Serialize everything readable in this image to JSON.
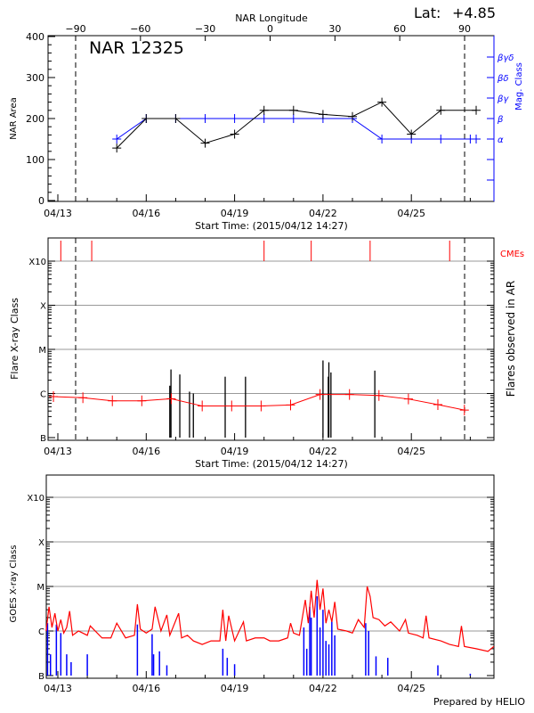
{
  "header": {
    "lat_label": "Lat:",
    "lat_value": "+4.85"
  },
  "chart_data": [
    {
      "type": "line",
      "title": "NAR 12325",
      "xlabel": "Start Time: (2015/04/12 14:27)",
      "ylabel": "NAR Area",
      "y2label": "Mag. Class",
      "top_axis_label": "NAR Longitude",
      "top_ticks": [
        -90,
        -60,
        -30,
        0,
        30,
        60,
        90
      ],
      "x_ticks": [
        "04/13",
        "04/16",
        "04/19",
        "04/22",
        "04/25"
      ],
      "x_tick_days": [
        13,
        16,
        19,
        22,
        25
      ],
      "ylim": [
        0,
        400
      ],
      "y_ticks": [
        0,
        100,
        200,
        300,
        400
      ],
      "mag_class_ticks": [
        "α",
        "β",
        "βγ",
        "βδ",
        "βγδ"
      ],
      "limb_longitudes": [
        -90,
        90
      ],
      "series": [
        {
          "name": "NAR Area",
          "color": "#000000",
          "x": [
            15,
            16,
            17,
            18,
            19,
            20,
            21,
            22,
            23,
            24,
            25,
            26,
            27.2
          ],
          "values": [
            128,
            200,
            200,
            140,
            162,
            220,
            220,
            210,
            205,
            240,
            162,
            220,
            220
          ]
        },
        {
          "name": "Mag. Class",
          "color": "#0000ff",
          "x": [
            15,
            16,
            17,
            18,
            19,
            20,
            21,
            22,
            23,
            24,
            25,
            26,
            27,
            27.2
          ],
          "values": [
            "α",
            "β",
            "β",
            "β",
            "β",
            "β",
            "β",
            "β",
            "β",
            "α",
            "α",
            "α",
            "α",
            "α"
          ]
        }
      ]
    },
    {
      "type": "line",
      "xlabel": "Start Time: (2015/04/12 14:27)",
      "ylabel": "Flare X-ray Class",
      "y2label": "Flares observed in AR",
      "y_ticks": [
        "B",
        "C",
        "M",
        "X",
        "X10"
      ],
      "cme_label": "CMEs",
      "cme_days": [
        13.1,
        14.15,
        20.0,
        21.6,
        23.6,
        26.3
      ],
      "x_ticks": [
        "04/13",
        "04/16",
        "04/19",
        "04/22",
        "04/25"
      ],
      "background": {
        "color": "#ff0000",
        "x": [
          12.85,
          13.85,
          14.85,
          15.85,
          16.85,
          17.9,
          18.9,
          19.9,
          20.9,
          21.9,
          22.9,
          23.9,
          24.9,
          25.9,
          26.8
        ],
        "flux": [
          8.5e-07,
          8e-07,
          6.8e-07,
          6.8e-07,
          7.6e-07,
          5.2e-07,
          5.2e-07,
          5.2e-07,
          5.5e-07,
          9.5e-07,
          9.5e-07,
          9e-07,
          7.5e-07,
          5.6e-07,
          4.2e-07
        ]
      },
      "flares": {
        "color": "#000000",
        "x": [
          16.8,
          16.84,
          17.14,
          17.47,
          17.6,
          18.68,
          19.37,
          22.0,
          22.18,
          22.2,
          22.27,
          23.76
        ],
        "flux": [
          1.5e-06,
          3.5e-06,
          2.7e-06,
          1.1e-06,
          1e-06,
          2.4e-06,
          2.4e-06,
          5.6e-06,
          2.4e-06,
          5.1e-06,
          3e-06,
          3.3e-06
        ]
      }
    },
    {
      "type": "line",
      "ylabel": "GOES X-ray Class",
      "y_ticks": [
        "B",
        "C",
        "M",
        "X",
        "X10"
      ],
      "x_ticks": [
        "04/13",
        "04/16",
        "04/19",
        "04/22",
        "04/25"
      ],
      "series": [
        {
          "color": "#ff0000",
          "x": [
            12.6,
            12.7,
            12.8,
            12.9,
            13.0,
            13.1,
            13.2,
            13.3,
            13.4,
            13.5,
            13.7,
            14.0,
            14.1,
            14.5,
            14.8,
            15.0,
            15.3,
            15.6,
            15.7,
            15.8,
            16.0,
            16.2,
            16.3,
            16.5,
            16.7,
            16.8,
            17.1,
            17.2,
            17.4,
            17.6,
            17.9,
            18.2,
            18.5,
            18.6,
            18.7,
            18.8,
            19.0,
            19.3,
            19.4,
            19.7,
            20.0,
            20.2,
            20.5,
            20.8,
            20.9,
            21.0,
            21.2,
            21.4,
            21.5,
            21.6,
            21.7,
            21.8,
            21.9,
            22.0,
            22.1,
            22.2,
            22.3,
            22.4,
            22.5,
            22.8,
            23.0,
            23.2,
            23.4,
            23.5,
            23.6,
            23.7,
            23.9,
            24.1,
            24.3,
            24.6,
            24.8,
            24.9,
            25.2,
            25.4,
            25.5,
            25.6,
            26.0,
            26.3,
            26.6,
            26.7,
            26.8,
            27.2,
            27.6,
            27.8
          ],
          "flux": [
            1e-06,
            3.5e-06,
            1.2e-06,
            2.5e-06,
            1e-06,
            1.8e-06,
            9e-07,
            1.2e-06,
            2.8e-06,
            8e-07,
            1e-06,
            8e-07,
            1.3e-06,
            7e-07,
            7e-07,
            1.5e-06,
            7e-07,
            8e-07,
            4e-06,
            1.1e-06,
            9e-07,
            1.1e-06,
            3.5e-06,
            1e-06,
            2.3e-06,
            8e-07,
            2.5e-06,
            7e-07,
            8e-07,
            6e-07,
            5e-07,
            6e-07,
            6e-07,
            3e-06,
            6e-07,
            2.2e-06,
            6e-07,
            1.6e-06,
            6e-07,
            7e-07,
            7e-07,
            6e-07,
            6e-07,
            7e-07,
            1.5e-06,
            9e-07,
            8e-07,
            5e-06,
            1.5e-06,
            8e-06,
            2e-06,
            1.4e-05,
            3e-06,
            9e-06,
            1.5e-06,
            3e-06,
            1.6e-06,
            4.5e-06,
            1.1e-06,
            1e-06,
            9e-07,
            1.8e-06,
            1.2e-06,
            1e-05,
            6e-06,
            2e-06,
            1.8e-06,
            1.3e-06,
            1.6e-06,
            1e-06,
            1.8e-06,
            9e-07,
            8e-07,
            7e-07,
            2.2e-06,
            7e-07,
            6e-07,
            5e-07,
            4.5e-07,
            1.3e-06,
            4.5e-07,
            4e-07,
            3.5e-07,
            4.5e-07
          ]
        },
        {
          "color": "#0000ff",
          "x": [
            12.65,
            12.75,
            12.95,
            13.1,
            13.3,
            13.45,
            14.0,
            15.7,
            16.2,
            16.25,
            16.45,
            16.7,
            18.6,
            18.75,
            19.0,
            21.35,
            21.45,
            21.55,
            21.6,
            21.8,
            21.9,
            22.0,
            22.1,
            22.2,
            22.3,
            22.4,
            23.45,
            23.55,
            23.8,
            24.2,
            25.9,
            27.0
          ],
          "flux": [
            1.5e-06,
            3e-07,
            1.4e-06,
            9e-07,
            3e-07,
            2e-07,
            3e-07,
            1.4e-06,
            8.5e-07,
            3e-07,
            3.5e-07,
            1.7e-07,
            4e-07,
            2.5e-07,
            1.8e-07,
            1.2e-06,
            4e-07,
            3.5e-06,
            2e-06,
            6e-06,
            1.2e-06,
            3e-06,
            6e-07,
            5e-07,
            1.8e-06,
            8e-07,
            1.5e-06,
            1e-06,
            2.7e-07,
            2.5e-07,
            1.7e-07,
            1.1e-07
          ]
        }
      ]
    }
  ],
  "footer": {
    "credit": "Prepared by HELIO"
  }
}
